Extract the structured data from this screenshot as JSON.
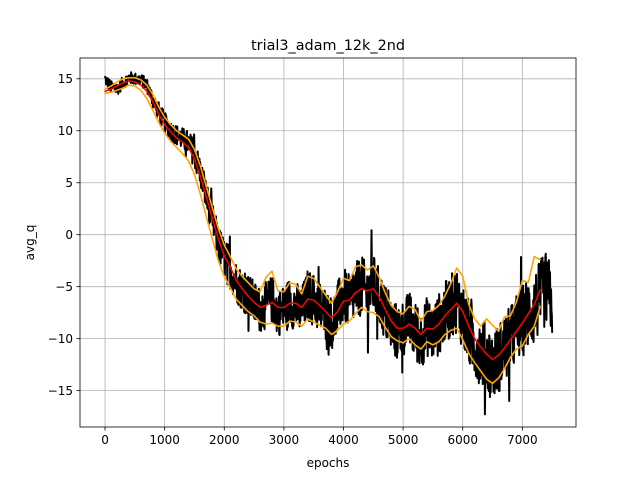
{
  "chart_data": {
    "type": "line",
    "title": "trial3_adam_12k_2nd",
    "xlabel": "epochs",
    "ylabel": "avg_q",
    "xlim": [
      -420,
      7900
    ],
    "ylim": [
      -18.5,
      17
    ],
    "xticks": [
      0,
      1000,
      2000,
      3000,
      4000,
      5000,
      6000,
      7000
    ],
    "yticks": [
      -15,
      -10,
      -5,
      0,
      5,
      10,
      15
    ],
    "grid": true,
    "series": [
      {
        "color": "#000000",
        "style": "raw noisy trace",
        "x": [
          0,
          100,
          200,
          300,
          400,
          500,
          600,
          700,
          800,
          900,
          1000,
          1100,
          1200,
          1300,
          1400,
          1500,
          1600,
          1700,
          1800,
          1900,
          2000,
          2100,
          2200,
          2300,
          2400,
          2500,
          2600,
          2700,
          2800,
          2900,
          3000,
          3100,
          3200,
          3300,
          3400,
          3500,
          3600,
          3700,
          3800,
          3900,
          4000,
          4100,
          4200,
          4300,
          4400,
          4500,
          4600,
          4700,
          4800,
          4900,
          5000,
          5100,
          5200,
          5300,
          5400,
          5500,
          5600,
          5700,
          5800,
          5900,
          6000,
          6100,
          6200,
          6300,
          6400,
          6500,
          6600,
          6700,
          6800,
          6900,
          7000,
          7100,
          7200,
          7300,
          7400,
          7500
        ],
        "values": [
          15.0,
          14.2,
          14.0,
          14.6,
          15.1,
          15.0,
          14.9,
          14.4,
          13.0,
          11.8,
          10.8,
          10.0,
          9.6,
          9.2,
          8.8,
          7.8,
          6.0,
          3.6,
          1.5,
          -0.8,
          -2.2,
          -3.2,
          -4.5,
          -5.3,
          -5.8,
          -6.6,
          -7.2,
          -6.8,
          -6.2,
          -7.5,
          -7.1,
          -6.4,
          -6.9,
          -7.4,
          -5.8,
          -6.3,
          -7.0,
          -7.6,
          -8.5,
          -7.2,
          -5.8,
          -6.6,
          -5.5,
          -4.9,
          -5.8,
          -4.8,
          -6.1,
          -7.5,
          -8.8,
          -9.4,
          -9.0,
          -8.2,
          -9.3,
          -10.1,
          -8.8,
          -9.5,
          -8.6,
          -7.5,
          -6.9,
          -6.2,
          -7.8,
          -9.5,
          -10.5,
          -11.2,
          -11.8,
          -12.6,
          -11.9,
          -11.0,
          -10.2,
          -9.0,
          -8.3,
          -7.5,
          -7.2,
          -6.0,
          -5.2,
          -6.5
        ],
        "amplitude": [
          0.6,
          0.6,
          0.6,
          0.6,
          0.6,
          0.6,
          0.6,
          0.7,
          0.8,
          1.0,
          1.0,
          1.0,
          1.0,
          1.1,
          1.2,
          1.4,
          1.5,
          1.6,
          1.6,
          1.8,
          1.9,
          2.0,
          2.0,
          2.0,
          2.1,
          2.2,
          2.2,
          2.3,
          2.3,
          2.3,
          2.3,
          2.4,
          2.4,
          2.5,
          2.5,
          2.6,
          2.6,
          2.6,
          2.6,
          2.7,
          2.7,
          2.7,
          2.8,
          2.9,
          3.0,
          3.0,
          2.9,
          2.8,
          2.8,
          2.8,
          2.8,
          2.8,
          2.9,
          2.9,
          2.9,
          2.9,
          3.0,
          3.0,
          3.1,
          3.2,
          3.3,
          3.3,
          3.3,
          3.3,
          3.4,
          3.4,
          3.4,
          3.4,
          3.4,
          3.4,
          3.5,
          3.6,
          3.6,
          3.6,
          3.6,
          3.5
        ]
      },
      {
        "color": "#ff0000",
        "style": "moving average",
        "x": [
          0,
          100,
          200,
          300,
          400,
          500,
          600,
          700,
          800,
          900,
          1000,
          1100,
          1200,
          1300,
          1400,
          1500,
          1600,
          1700,
          1800,
          1900,
          2000,
          2100,
          2200,
          2300,
          2400,
          2500,
          2600,
          2700,
          2800,
          2900,
          3000,
          3100,
          3200,
          3300,
          3400,
          3500,
          3600,
          3700,
          3800,
          3900,
          4000,
          4100,
          4200,
          4300,
          4400,
          4500,
          4600,
          4700,
          4800,
          4900,
          5000,
          5100,
          5200,
          5300,
          5400,
          5500,
          5600,
          5700,
          5800,
          5900,
          6000,
          6100,
          6200,
          6300,
          6400,
          6500,
          6600,
          6700,
          6800,
          6900,
          7000,
          7100,
          7200,
          7300
        ],
        "values": [
          13.8,
          14.0,
          14.3,
          14.6,
          14.8,
          14.7,
          14.4,
          13.8,
          12.8,
          11.6,
          10.6,
          9.9,
          9.3,
          8.9,
          8.4,
          7.3,
          5.6,
          3.6,
          1.6,
          -0.4,
          -2.0,
          -3.1,
          -4.4,
          -5.2,
          -5.9,
          -6.5,
          -7.0,
          -6.8,
          -6.5,
          -7.0,
          -7.0,
          -6.6,
          -6.6,
          -7.0,
          -6.2,
          -6.3,
          -6.8,
          -7.4,
          -8.0,
          -7.4,
          -6.4,
          -6.3,
          -5.6,
          -5.2,
          -5.4,
          -5.2,
          -6.0,
          -7.2,
          -8.3,
          -9.0,
          -9.0,
          -8.6,
          -9.0,
          -9.6,
          -9.0,
          -9.1,
          -8.6,
          -7.8,
          -7.2,
          -6.6,
          -7.4,
          -8.8,
          -10.0,
          -10.8,
          -11.5,
          -12.0,
          -11.6,
          -10.9,
          -10.1,
          -9.3,
          -8.5,
          -7.6,
          -6.7,
          -5.3
        ]
      },
      {
        "color": "#ffa500",
        "style": "upper band",
        "x": [
          0,
          100,
          200,
          300,
          400,
          500,
          600,
          700,
          800,
          900,
          1000,
          1100,
          1200,
          1300,
          1400,
          1500,
          1600,
          1700,
          1800,
          1900,
          2000,
          2100,
          2200,
          2300,
          2400,
          2500,
          2600,
          2700,
          2800,
          2900,
          3000,
          3100,
          3200,
          3300,
          3400,
          3500,
          3600,
          3700,
          3800,
          3900,
          4000,
          4100,
          4200,
          4300,
          4400,
          4500,
          4600,
          4700,
          4800,
          4900,
          5000,
          5100,
          5200,
          5300,
          5400,
          5500,
          5600,
          5700,
          5800,
          5900,
          6000,
          6100,
          6200,
          6300,
          6400,
          6500,
          6600,
          6700,
          6800,
          6900,
          7000,
          7100,
          7200,
          7300
        ],
        "values": [
          14.0,
          14.3,
          14.7,
          15.0,
          15.1,
          15.1,
          14.9,
          14.4,
          13.5,
          12.3,
          11.3,
          10.6,
          10.0,
          9.6,
          9.2,
          8.2,
          6.6,
          4.6,
          2.6,
          0.6,
          -1.0,
          -2.1,
          -3.3,
          -4.0,
          -4.6,
          -5.2,
          -5.5,
          -4.1,
          -3.5,
          -5.4,
          -5.5,
          -4.6,
          -4.8,
          -5.7,
          -4.0,
          -4.2,
          -5.0,
          -5.8,
          -6.6,
          -5.5,
          -4.2,
          -4.4,
          -3.1,
          -2.9,
          -3.4,
          -3.0,
          -4.1,
          -5.6,
          -6.8,
          -7.4,
          -7.6,
          -6.9,
          -7.2,
          -8.3,
          -7.4,
          -7.3,
          -6.8,
          -5.9,
          -4.7,
          -3.2,
          -4.0,
          -6.7,
          -8.1,
          -8.8,
          -8.1,
          -8.7,
          -9.3,
          -7.9,
          -7.8,
          -6.5,
          -4.4,
          -4.6,
          -2.1,
          -2.4
        ]
      },
      {
        "color": "#ffa500",
        "style": "lower band",
        "x": [
          0,
          100,
          200,
          300,
          400,
          500,
          600,
          700,
          800,
          900,
          1000,
          1100,
          1200,
          1300,
          1400,
          1500,
          1600,
          1700,
          1800,
          1900,
          2000,
          2100,
          2200,
          2300,
          2400,
          2500,
          2600,
          2700,
          2800,
          2900,
          3000,
          3100,
          3200,
          3300,
          3400,
          3500,
          3600,
          3700,
          3800,
          3900,
          4000,
          4100,
          4200,
          4300,
          4400,
          4500,
          4600,
          4700,
          4800,
          4900,
          5000,
          5100,
          5200,
          5300,
          5400,
          5500,
          5600,
          5700,
          5800,
          5900,
          6000,
          6100,
          6200,
          6300,
          6400,
          6500,
          6600,
          6700,
          6800,
          6900,
          7000,
          7100,
          7200,
          7300
        ],
        "values": [
          13.6,
          13.7,
          13.9,
          14.1,
          14.4,
          14.3,
          13.9,
          13.1,
          12.0,
          10.8,
          9.8,
          9.0,
          8.4,
          7.8,
          7.1,
          5.8,
          3.9,
          1.7,
          -0.4,
          -2.5,
          -4.0,
          -5.1,
          -6.2,
          -6.8,
          -7.4,
          -7.8,
          -8.4,
          -8.6,
          -8.5,
          -8.8,
          -8.8,
          -8.3,
          -8.4,
          -8.8,
          -8.1,
          -8.4,
          -8.7,
          -9.0,
          -9.6,
          -9.2,
          -8.6,
          -8.3,
          -7.6,
          -7.0,
          -7.4,
          -7.5,
          -7.9,
          -8.9,
          -9.8,
          -10.2,
          -10.4,
          -10.0,
          -10.6,
          -11.0,
          -10.3,
          -10.6,
          -10.3,
          -9.6,
          -9.2,
          -9.0,
          -10.1,
          -11.4,
          -12.3,
          -13.1,
          -13.9,
          -14.3,
          -13.8,
          -12.9,
          -11.8,
          -11.0,
          -10.7,
          -9.6,
          -8.8,
          -6.9
        ]
      }
    ]
  }
}
